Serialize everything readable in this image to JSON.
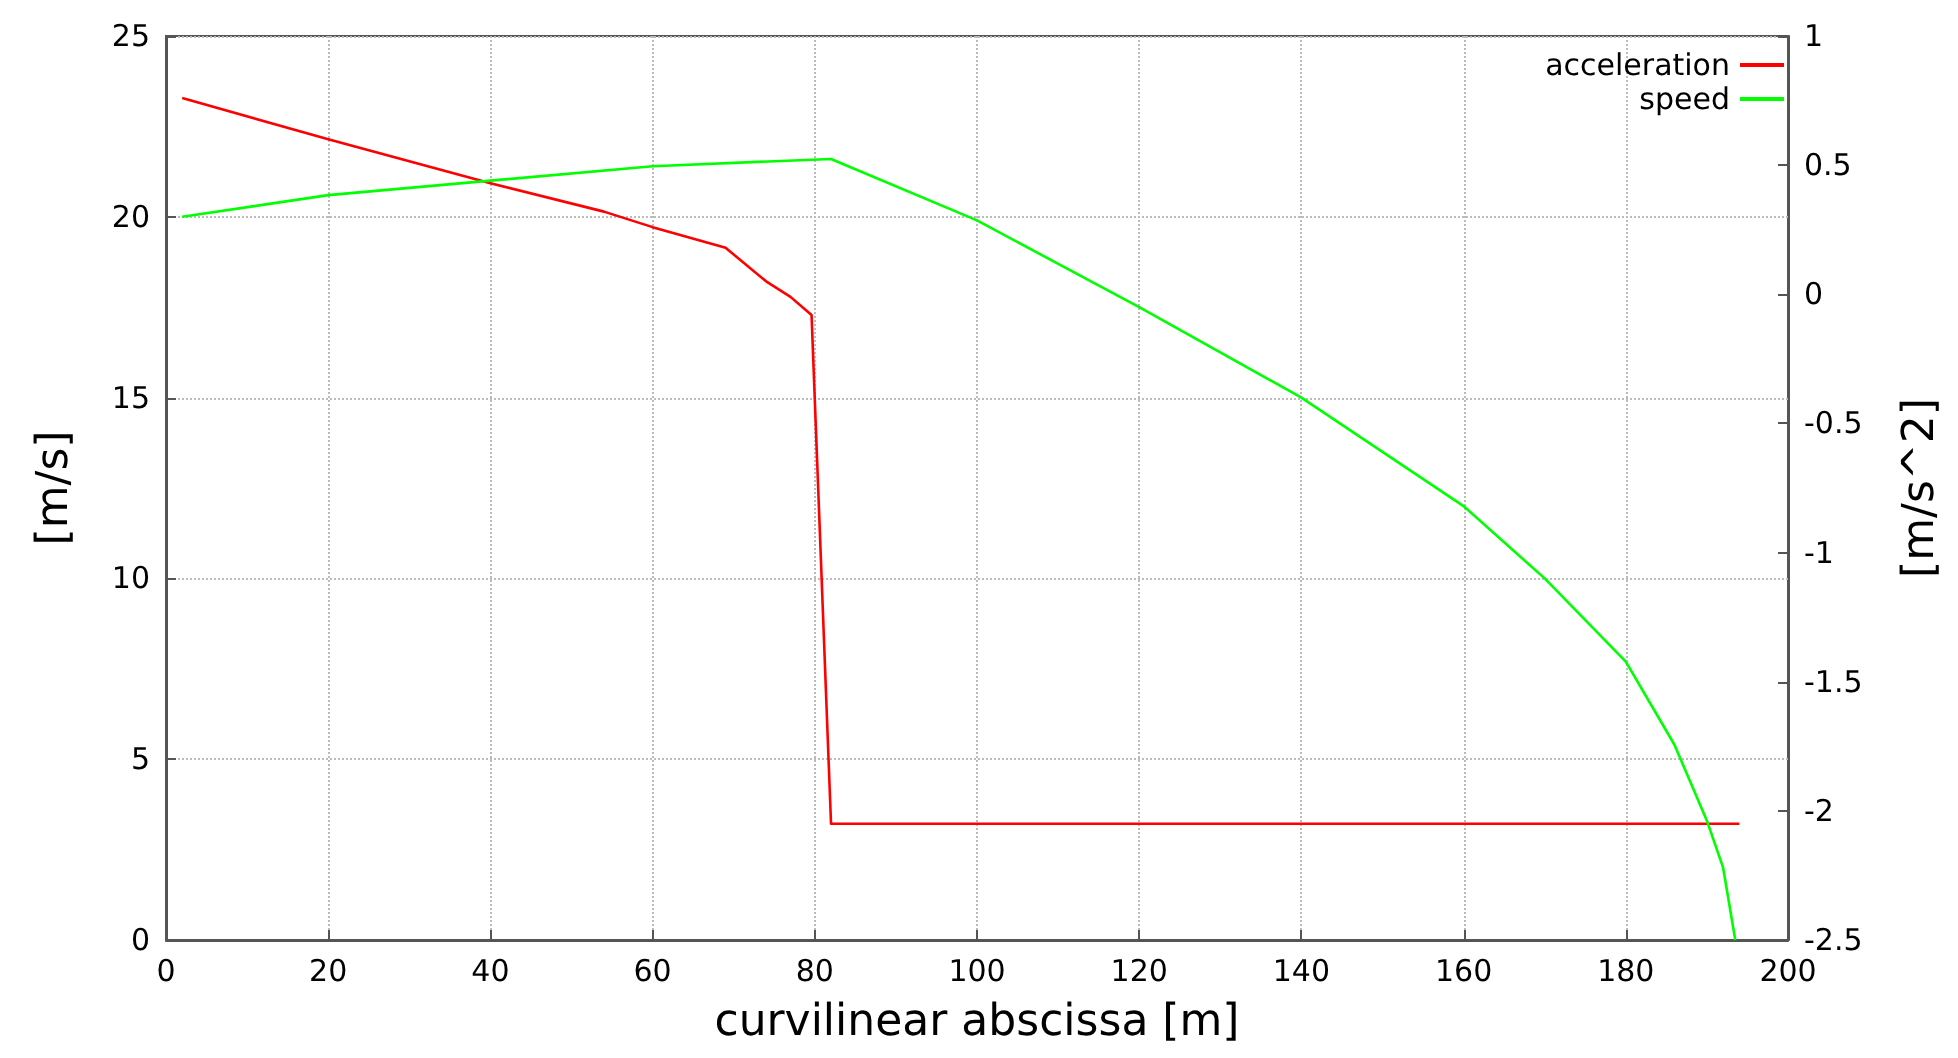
{
  "chart_data": {
    "type": "line",
    "xlabel": "curvilinear abscissa [m]",
    "ylabel": "[m/s]",
    "y2label": "[m/s^2]",
    "xlim": [
      0,
      200
    ],
    "xticks": [
      0,
      20,
      40,
      60,
      80,
      100,
      120,
      140,
      160,
      180,
      200
    ],
    "ylim": [
      0,
      25
    ],
    "yticks": [
      0,
      5,
      10,
      15,
      20,
      25
    ],
    "y2lim": [
      -2.5,
      1
    ],
    "y2ticks": [
      -2.5,
      -2,
      -1.5,
      -1,
      -0.5,
      0,
      0.5,
      1
    ],
    "grid": true,
    "legend": "top right",
    "marker": "none",
    "line_style": "solid",
    "series": [
      {
        "name": "acceleration",
        "color": "#ff0000",
        "axis": "y2",
        "x": [
          2,
          20,
          40,
          54,
          60,
          69,
          74,
          77,
          79.6,
          82,
          194
        ],
        "values": [
          0.76,
          0.6,
          0.43,
          0.32,
          0.26,
          0.18,
          0.05,
          -0.01,
          -0.08,
          -2.05,
          -2.05
        ]
      },
      {
        "name": "speed",
        "color": "#00ff00",
        "x": [
          2,
          20,
          40,
          60,
          82,
          100,
          120,
          140,
          160,
          170,
          180,
          186,
          190,
          192,
          193.5
        ],
        "values": [
          20.0,
          20.6,
          21.0,
          21.4,
          21.6,
          19.9,
          17.5,
          15.0,
          12.0,
          10.0,
          7.7,
          5.4,
          3.3,
          2.0,
          0
        ]
      }
    ]
  }
}
